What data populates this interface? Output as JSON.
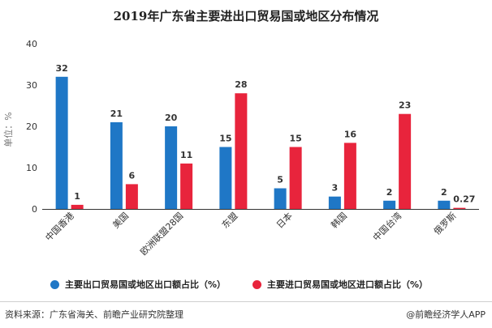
{
  "chart_data": {
    "type": "bar",
    "title": "2019年广东省主要进出口贸易国或地区分布情况",
    "ylabel": "单位：%",
    "xlabel": "",
    "ylim": [
      0,
      40
    ],
    "yticks": [
      0,
      10,
      20,
      30,
      40
    ],
    "grid": false,
    "legend_position": "bottom",
    "categories": [
      "中国香港",
      "美国",
      "欧洲联盟28国",
      "东盟",
      "日本",
      "韩国",
      "中国台湾",
      "俄罗斯"
    ],
    "series": [
      {
        "name": "主要出口贸易国或地区出口额占比（%）",
        "color": "#1f77c6",
        "values": [
          32,
          21,
          20,
          15,
          5,
          3,
          2,
          2
        ],
        "labels": [
          "32",
          "21",
          "20",
          "15",
          "5",
          "3",
          "2",
          "2"
        ]
      },
      {
        "name": "主要进口贸易国或地区进口额占比（%）",
        "color": "#e8243c",
        "values": [
          1,
          6,
          11,
          28,
          15,
          16,
          23,
          0.27
        ],
        "labels": [
          "1",
          "6",
          "11",
          "28",
          "15",
          "16",
          "23",
          "0.27"
        ]
      }
    ]
  },
  "footer": {
    "source": "资料来源：广东省海关、前瞻产业研究院整理",
    "credit": "@前瞻经济学人APP"
  }
}
